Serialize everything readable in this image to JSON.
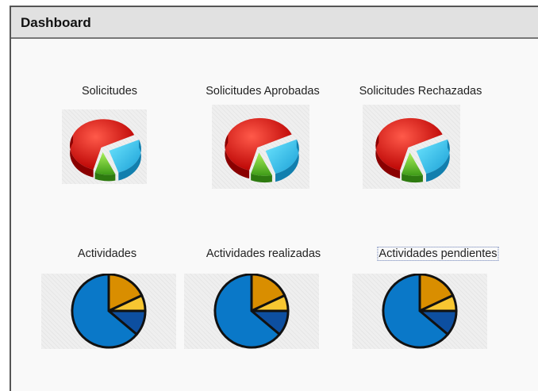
{
  "header": {
    "title": "Dashboard"
  },
  "items": [
    {
      "label": "Solicitudes"
    },
    {
      "label": "Solicitudes Aprobadas"
    },
    {
      "label": "Solicitudes Rechazadas"
    },
    {
      "label": "Actividades"
    },
    {
      "label": "Actividades realizadas"
    },
    {
      "label": "Actividades pendientes"
    }
  ]
}
